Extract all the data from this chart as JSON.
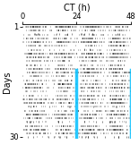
{
  "title": "CT (h)",
  "xlabel": "CT (h)",
  "ylabel": "Days",
  "x_ticks": [
    0,
    24,
    48
  ],
  "x_lim": [
    0,
    48
  ],
  "y_lim": [
    30.5,
    0.5
  ],
  "y_ticks": [
    1,
    30
  ],
  "n_days": 30,
  "period": 24,
  "cyan_line_x": 24,
  "cyan_line_x2": 48,
  "cyan_line_day_start": 13,
  "cyan_line_day_end": 30,
  "background_color": "#ffffff",
  "dot_color": "#1a1a1a",
  "cyan_color": "#00bfff",
  "seed": 7,
  "title_fontsize": 7,
  "label_fontsize": 7,
  "tick_fontsize": 6
}
